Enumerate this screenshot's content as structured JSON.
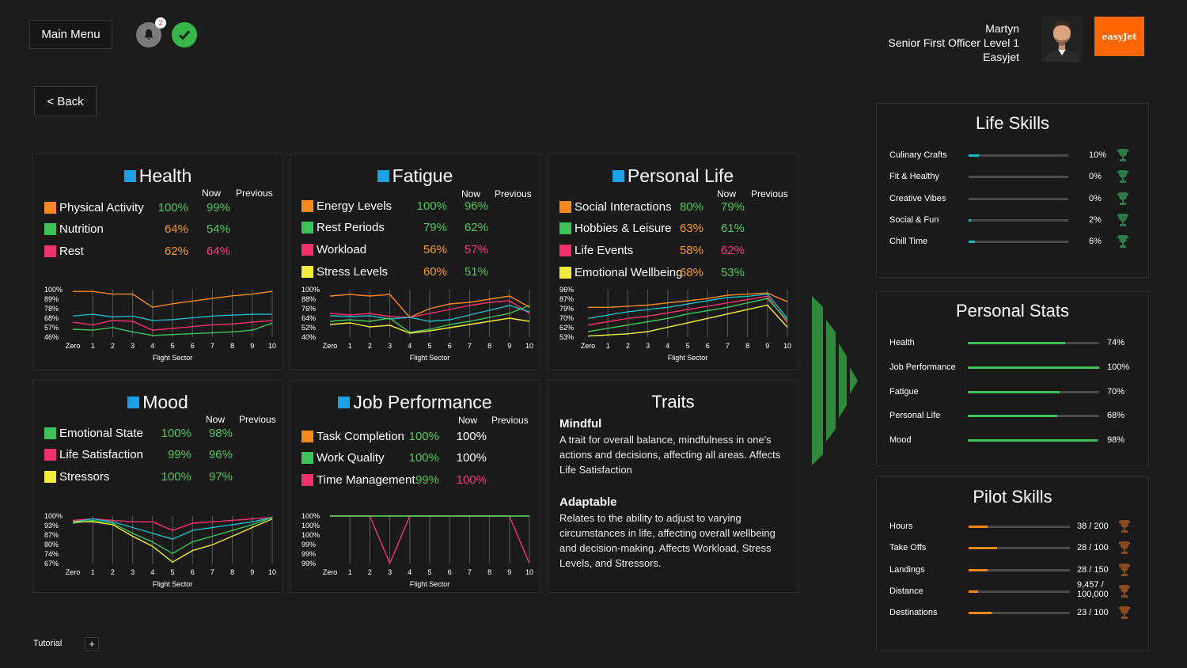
{
  "header": {
    "main_menu": "Main Menu",
    "back": "< Back",
    "notif_count": "2",
    "user_name": "Martyn",
    "user_role": "Senior First Officer Level 1",
    "user_company": "Easyjet",
    "logo_text": "easyJet"
  },
  "labels": {
    "now": "Now",
    "previous": "Previous",
    "flight_sector": "Flight Sector"
  },
  "colors": {
    "orange": "#f7881f",
    "green": "#3ec25a",
    "pink": "#f2326b",
    "yellow": "#f2ec3a",
    "blue": "#1da1e6",
    "cyan": "#1fb6c6"
  },
  "health": {
    "title": "Health",
    "rows": [
      {
        "label": "Physical Activity",
        "now": "100%",
        "prev": "99%",
        "color": "orange"
      },
      {
        "label": "Nutrition",
        "now": "64%",
        "prev": "54%",
        "color": "green"
      },
      {
        "label": "Rest",
        "now": "62%",
        "prev": "64%",
        "color": "pink"
      }
    ],
    "y_ticks": [
      "100%",
      "89%",
      "78%",
      "68%",
      "57%",
      "46%"
    ],
    "x_ticks": [
      "Zero",
      "1",
      "2",
      "3",
      "4",
      "5",
      "6",
      "7",
      "8",
      "9",
      "10"
    ],
    "series": [
      {
        "color": "orange",
        "values": [
          98,
          98,
          95,
          95,
          80,
          84,
          87,
          90,
          93,
          95,
          98
        ]
      },
      {
        "color": "cyan",
        "values": [
          70,
          72,
          69,
          70,
          65,
          66,
          68,
          70,
          71,
          72,
          72
        ]
      },
      {
        "color": "pink",
        "values": [
          63,
          60,
          65,
          64,
          54,
          56,
          58,
          60,
          61,
          63,
          65
        ]
      },
      {
        "color": "green",
        "values": [
          55,
          54,
          57,
          52,
          48,
          49,
          50,
          51,
          52,
          54,
          62
        ]
      }
    ],
    "ymin": 46,
    "ymax": 100
  },
  "fatigue": {
    "title": "Fatigue",
    "rows": [
      {
        "label": "Energy Levels",
        "now": "100%",
        "prev": "96%",
        "color": "orange"
      },
      {
        "label": "Rest Periods",
        "now": "79%",
        "prev": "62%",
        "color": "green"
      },
      {
        "label": "Workload",
        "now": "56%",
        "prev": "57%",
        "color": "pink"
      },
      {
        "label": "Stress Levels",
        "now": "60%",
        "prev": "51%",
        "color": "yellow"
      }
    ],
    "y_ticks": [
      "100%",
      "88%",
      "76%",
      "64%",
      "52%",
      "40%"
    ],
    "x_ticks": [
      "Zero",
      "1",
      "2",
      "3",
      "4",
      "5",
      "6",
      "7",
      "8",
      "9",
      "10"
    ],
    "series": [
      {
        "color": "orange",
        "values": [
          92,
          94,
          92,
          94,
          65,
          76,
          82,
          84,
          88,
          92,
          78
        ]
      },
      {
        "color": "pink",
        "values": [
          70,
          68,
          70,
          66,
          65,
          70,
          75,
          80,
          84,
          86,
          70
        ]
      },
      {
        "color": "cyan",
        "values": [
          67,
          66,
          67,
          63,
          65,
          60,
          62,
          68,
          74,
          80,
          72
        ]
      },
      {
        "color": "green",
        "values": [
          60,
          62,
          60,
          64,
          46,
          50,
          56,
          60,
          65,
          70,
          80
        ]
      },
      {
        "color": "yellow",
        "values": [
          56,
          58,
          53,
          55,
          45,
          48,
          52,
          56,
          60,
          64,
          60
        ]
      }
    ],
    "ymin": 40,
    "ymax": 100
  },
  "personal_life": {
    "title": "Personal Life",
    "rows": [
      {
        "label": "Social Interactions",
        "now": "80%",
        "prev": "79%",
        "color": "orange"
      },
      {
        "label": "Hobbies & Leisure",
        "now": "63%",
        "prev": "61%",
        "color": "green"
      },
      {
        "label": "Life Events",
        "now": "58%",
        "prev": "62%",
        "color": "pink"
      },
      {
        "label": "Emotional Wellbeing",
        "now": "68%",
        "prev": "53%",
        "color": "yellow"
      }
    ],
    "y_ticks": [
      "96%",
      "87%",
      "79%",
      "70%",
      "62%",
      "53%"
    ],
    "x_ticks": [
      "Zero",
      "1",
      "2",
      "3",
      "4",
      "5",
      "6",
      "7",
      "8",
      "9",
      "10"
    ],
    "series": [
      {
        "color": "orange",
        "values": [
          80,
          80,
          81,
          82,
          84,
          86,
          88,
          91,
          92,
          93,
          85
        ]
      },
      {
        "color": "cyan",
        "values": [
          70,
          73,
          76,
          78,
          80,
          83,
          86,
          89,
          90,
          92,
          70
        ]
      },
      {
        "color": "pink",
        "values": [
          64,
          67,
          70,
          72,
          75,
          78,
          81,
          84,
          87,
          90,
          66
        ]
      },
      {
        "color": "green",
        "values": [
          58,
          61,
          64,
          67,
          70,
          74,
          77,
          80,
          84,
          88,
          68
        ]
      },
      {
        "color": "yellow",
        "values": [
          54,
          55,
          56,
          58,
          62,
          66,
          70,
          74,
          78,
          82,
          62
        ]
      }
    ],
    "ymin": 53,
    "ymax": 96
  },
  "mood": {
    "title": "Mood",
    "rows": [
      {
        "label": "Emotional State",
        "now": "100%",
        "prev": "98%",
        "color": "green"
      },
      {
        "label": "Life Satisfaction",
        "now": "99%",
        "prev": "96%",
        "color": "pink"
      },
      {
        "label": "Stressors",
        "now": "100%",
        "prev": "97%",
        "color": "yellow"
      }
    ],
    "y_ticks": [
      "100%",
      "93%",
      "87%",
      "80%",
      "74%",
      "67%"
    ],
    "x_ticks": [
      "Zero",
      "1",
      "2",
      "3",
      "4",
      "5",
      "6",
      "7",
      "8",
      "9",
      "10"
    ],
    "series": [
      {
        "color": "pink",
        "values": [
          97,
          98,
          97,
          96,
          96,
          90,
          95,
          96,
          97,
          98,
          99
        ]
      },
      {
        "color": "cyan",
        "values": [
          96,
          98,
          96,
          92,
          88,
          84,
          90,
          92,
          94,
          96,
          99
        ]
      },
      {
        "color": "green",
        "values": [
          95,
          97,
          95,
          88,
          82,
          74,
          82,
          86,
          90,
          94,
          99
        ]
      },
      {
        "color": "yellow",
        "values": [
          96,
          96,
          94,
          86,
          79,
          68,
          76,
          80,
          86,
          92,
          98
        ]
      }
    ],
    "ymin": 67,
    "ymax": 100
  },
  "job_performance": {
    "title": "Job Performance",
    "rows": [
      {
        "label": "Task Completion",
        "now": "100%",
        "prev": "100%",
        "color": "orange"
      },
      {
        "label": "Work Quality",
        "now": "100%",
        "prev": "100%",
        "color": "green"
      },
      {
        "label": "Time Management",
        "now": "99%",
        "prev": "100%",
        "color": "pink"
      }
    ],
    "y_ticks": [
      "100%",
      "100%",
      "100%",
      "99%",
      "99%",
      "99%"
    ],
    "x_ticks": [
      "Zero",
      "1",
      "2",
      "3",
      "4",
      "5",
      "6",
      "7",
      "8",
      "9",
      "10"
    ],
    "series": [
      {
        "color": "pink",
        "values": [
          100,
          100,
          100,
          99,
          100,
          100,
          100,
          100,
          100,
          100,
          99
        ]
      },
      {
        "color": "yellow",
        "values": [
          100,
          100,
          100,
          100,
          100,
          100,
          100,
          100,
          100,
          100,
          100
        ]
      },
      {
        "color": "green",
        "values": [
          100,
          100,
          100,
          100,
          100,
          100,
          100,
          100,
          100,
          100,
          100
        ]
      }
    ],
    "ymin": 99,
    "ymax": 100
  },
  "traits": {
    "title": "Traits",
    "t1_title": "Mindful",
    "t1_text": "A trait for overall balance, mindfulness in one's actions and decisions, affecting all areas. Affects Life Satisfaction",
    "t2_title": "Adaptable",
    "t2_text": "Relates to the ability to adjust to varying circumstances in life, affecting overall wellbeing and decision-making. Affects Workload, Stress Levels, and Stressors."
  },
  "life_skills": {
    "title": "Life Skills",
    "items": [
      {
        "label": "Culinary Crafts",
        "value": "10%",
        "pct": 10
      },
      {
        "label": "Fit & Healthy",
        "value": "0%",
        "pct": 0
      },
      {
        "label": "Creative Vibes",
        "value": "0%",
        "pct": 0
      },
      {
        "label": "Social & Fun",
        "value": "2%",
        "pct": 2
      },
      {
        "label": "Chill Time",
        "value": "6%",
        "pct": 6
      }
    ]
  },
  "personal_stats": {
    "title": "Personal Stats",
    "items": [
      {
        "label": "Health",
        "value": "74%",
        "pct": 74
      },
      {
        "label": "Job Performance",
        "value": "100%",
        "pct": 100
      },
      {
        "label": "Fatigue",
        "value": "70%",
        "pct": 70
      },
      {
        "label": "Personal Life",
        "value": "68%",
        "pct": 68
      },
      {
        "label": "Mood",
        "value": "98%",
        "pct": 98
      }
    ]
  },
  "pilot_skills": {
    "title": "Pilot Skills",
    "items": [
      {
        "label": "Hours",
        "value": "38 / 200",
        "pct": 19
      },
      {
        "label": "Take Offs",
        "value": "28 / 100",
        "pct": 28
      },
      {
        "label": "Landings",
        "value": "28 / 150",
        "pct": 18.7
      },
      {
        "label": "Distance",
        "value": "9,457 / 100,000",
        "pct": 9.5
      },
      {
        "label": "Destinations",
        "value": "23 / 100",
        "pct": 23
      }
    ]
  },
  "footer": {
    "tutorial": "Tutorial",
    "plus": "+"
  }
}
